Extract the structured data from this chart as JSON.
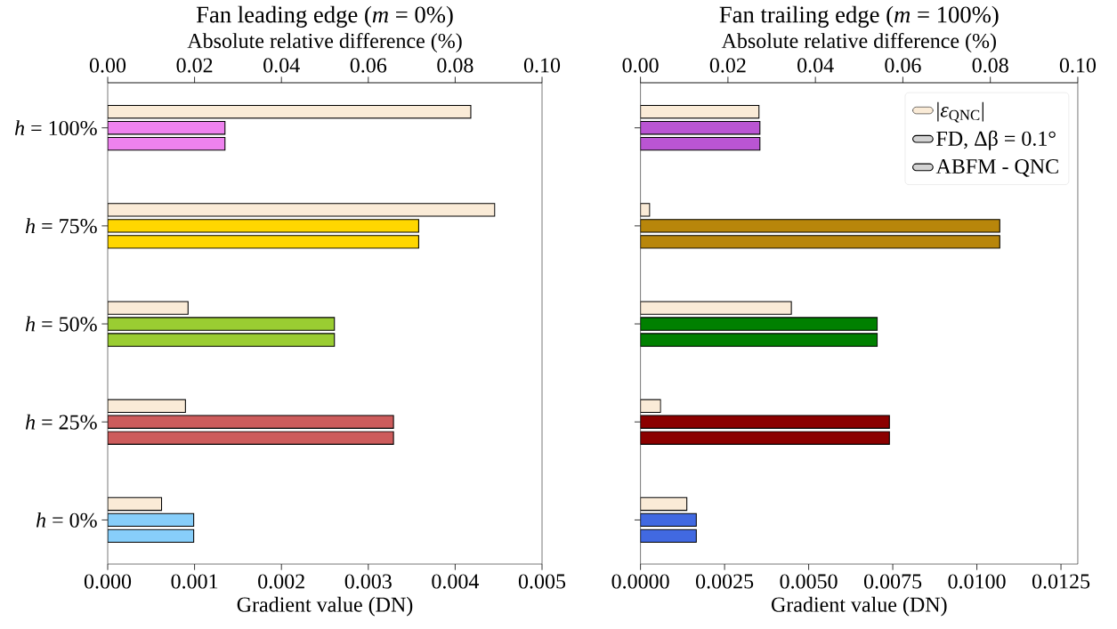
{
  "chart_data": [
    {
      "type": "bar",
      "orientation": "horizontal",
      "title": "Fan leading edge (*m* = 0%)",
      "xlabel": "Gradient value (DN)",
      "x2label": "Absolute relative difference (%)",
      "categories": [
        "*h* = 100%",
        "*h* = 75%",
        "*h* = 50%",
        "*h* = 25%",
        "*h* = 0%"
      ],
      "xlim": [
        0,
        0.005
      ],
      "xticks": [
        {
          "value": 0,
          "label": "0.000"
        },
        {
          "value": 0.001,
          "label": "0.001"
        },
        {
          "value": 0.002,
          "label": "0.002"
        },
        {
          "value": 0.003,
          "label": "0.003"
        },
        {
          "value": 0.004,
          "label": "0.004"
        },
        {
          "value": 0.005,
          "label": "0.005"
        }
      ],
      "x2lim": [
        0,
        0.1
      ],
      "x2ticks": [
        {
          "value": 0,
          "label": "0.00"
        },
        {
          "value": 0.02,
          "label": "0.02"
        },
        {
          "value": 0.04,
          "label": "0.04"
        },
        {
          "value": 0.06,
          "label": "0.06"
        },
        {
          "value": 0.08,
          "label": "0.08"
        },
        {
          "value": 0.1,
          "label": "0.10"
        }
      ],
      "grid": false,
      "series": [
        {
          "axis": "x2",
          "color": "#faebd7",
          "values": [
            0.0836,
            0.0891,
            0.0185,
            0.0179,
            0.0124
          ]
        },
        {
          "colors": [
            "#ee82ee",
            "#ffd700",
            "#9acd32",
            "#cd5c5c",
            "#87cefa"
          ],
          "values": [
            0.00135,
            0.00358,
            0.00261,
            0.00329,
            0.00099
          ]
        },
        {
          "colors": [
            "#ee82ee",
            "#ffd700",
            "#9acd32",
            "#cd5c5c",
            "#87cefa"
          ],
          "values": [
            0.00135,
            0.00358,
            0.00261,
            0.00329,
            0.00099
          ]
        }
      ]
    },
    {
      "type": "bar",
      "orientation": "horizontal",
      "title": "Fan trailing edge (*m* = 100%)",
      "xlabel": "Gradient value (DN)",
      "x2label": "Absolute relative difference (%)",
      "categories": [
        null,
        null,
        null,
        null,
        null
      ],
      "xlim": [
        0,
        0.013
      ],
      "xticks": [
        {
          "value": 0,
          "label": "0.0000"
        },
        {
          "value": 0.0025,
          "label": "0.0025"
        },
        {
          "value": 0.005,
          "label": "0.0050"
        },
        {
          "value": 0.0075,
          "label": "0.0075"
        },
        {
          "value": 0.01,
          "label": "0.0100"
        },
        {
          "value": 0.0125,
          "label": "0.0125"
        }
      ],
      "x2lim": [
        0,
        0.1
      ],
      "x2ticks": [
        {
          "value": 0,
          "label": "0.00"
        },
        {
          "value": 0.02,
          "label": "0.02"
        },
        {
          "value": 0.04,
          "label": "0.04"
        },
        {
          "value": 0.06,
          "label": "0.06"
        },
        {
          "value": 0.08,
          "label": "0.08"
        },
        {
          "value": 0.1,
          "label": "0.10"
        }
      ],
      "grid": false,
      "legend": "top right",
      "series": [
        {
          "name": "|*ε*$_{QNC}$|",
          "axis": "x2",
          "color": "#faebd7",
          "values": [
            0.0271,
            0.0021,
            0.0345,
            0.0046,
            0.0106
          ]
        },
        {
          "name": "FD, Δβ = 0.1°",
          "color": "#d3d3d3",
          "colors": [
            "#ba55d3",
            "#b8860b",
            "#008000",
            "#8b0000",
            "#4169e1"
          ],
          "values": [
            0.00355,
            0.01068,
            0.00704,
            0.0074,
            0.00166
          ]
        },
        {
          "name": "ABFM - QNC",
          "color": "#d3d3d3",
          "colors": [
            "#ba55d3",
            "#b8860b",
            "#008000",
            "#8b0000",
            "#4169e1"
          ],
          "values": [
            0.00355,
            0.01068,
            0.00704,
            0.0074,
            0.00166
          ]
        }
      ]
    }
  ]
}
